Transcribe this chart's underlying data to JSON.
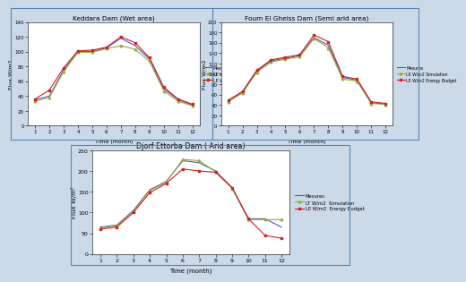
{
  "keddara": {
    "title": "Keddara Dam (Wet area)",
    "months": [
      1,
      2,
      3,
      4,
      5,
      6,
      7,
      8,
      9,
      10,
      11,
      12
    ],
    "measured": [
      35,
      40,
      75,
      100,
      100,
      105,
      118,
      108,
      90,
      50,
      35,
      28
    ],
    "simulation": [
      33,
      38,
      73,
      99,
      99,
      104,
      108,
      103,
      87,
      47,
      33,
      27
    ],
    "energy": [
      36,
      48,
      78,
      101,
      102,
      106,
      120,
      112,
      92,
      52,
      36,
      29
    ],
    "ylabel": "Flux W/m2",
    "xlabel": "Time (month)",
    "ylim": [
      0,
      140
    ],
    "yticks": [
      0,
      20,
      40,
      60,
      80,
      100,
      120,
      140
    ]
  },
  "foum": {
    "title": "Foum El Gheiss Dam (Semi arid area)",
    "months": [
      1,
      2,
      3,
      4,
      5,
      6,
      7,
      8,
      9,
      10,
      11,
      12
    ],
    "measured": [
      48,
      65,
      105,
      125,
      130,
      135,
      170,
      155,
      93,
      88,
      44,
      42
    ],
    "simulation": [
      46,
      63,
      103,
      123,
      128,
      133,
      168,
      150,
      90,
      86,
      43,
      41
    ],
    "energy": [
      49,
      66,
      107,
      127,
      132,
      137,
      175,
      162,
      95,
      90,
      46,
      43
    ],
    "ylabel": "Flux W/m2",
    "xlabel": "Time (month)",
    "ylim": [
      0,
      200
    ],
    "yticks": [
      0,
      20,
      40,
      60,
      80,
      100,
      120,
      140,
      160,
      180,
      200
    ]
  },
  "djorf": {
    "title": "Djorf Ettorba Dam ( Arid area)",
    "months": [
      1,
      2,
      3,
      4,
      5,
      6,
      7,
      8,
      9,
      10,
      11,
      12
    ],
    "measured": [
      65,
      70,
      105,
      155,
      175,
      225,
      220,
      200,
      160,
      85,
      85,
      65
    ],
    "simulation": [
      63,
      68,
      103,
      153,
      173,
      228,
      225,
      198,
      158,
      83,
      83,
      83
    ],
    "energy": [
      60,
      65,
      100,
      148,
      170,
      205,
      200,
      197,
      160,
      85,
      45,
      38
    ],
    "ylabel": "Flux W/m²",
    "xlabel": "Time (month)",
    "ylim": [
      0,
      250
    ],
    "yticks": [
      0,
      50,
      100,
      150,
      200,
      250
    ]
  },
  "legend_measured": "Mesures",
  "legend_sim_ke": "LE W/m2 Simulation",
  "legend_eb_ke": "LE W/m2 energy Budget",
  "legend_sim_fo": "LE W/m2 Simulation",
  "legend_eb_fo": "LE W/m2 Energy Budget",
  "legend_sim_dj": "LT W/m2  Simulation",
  "legend_eb_dj": "LE W/m2  Energy Budget",
  "color_measured": "#5555bb",
  "color_simulation": "#99aa33",
  "color_energy": "#cc2222",
  "panel_bg": "white",
  "fig_bg": "#ccd9e8",
  "border_color": "#5588bb"
}
